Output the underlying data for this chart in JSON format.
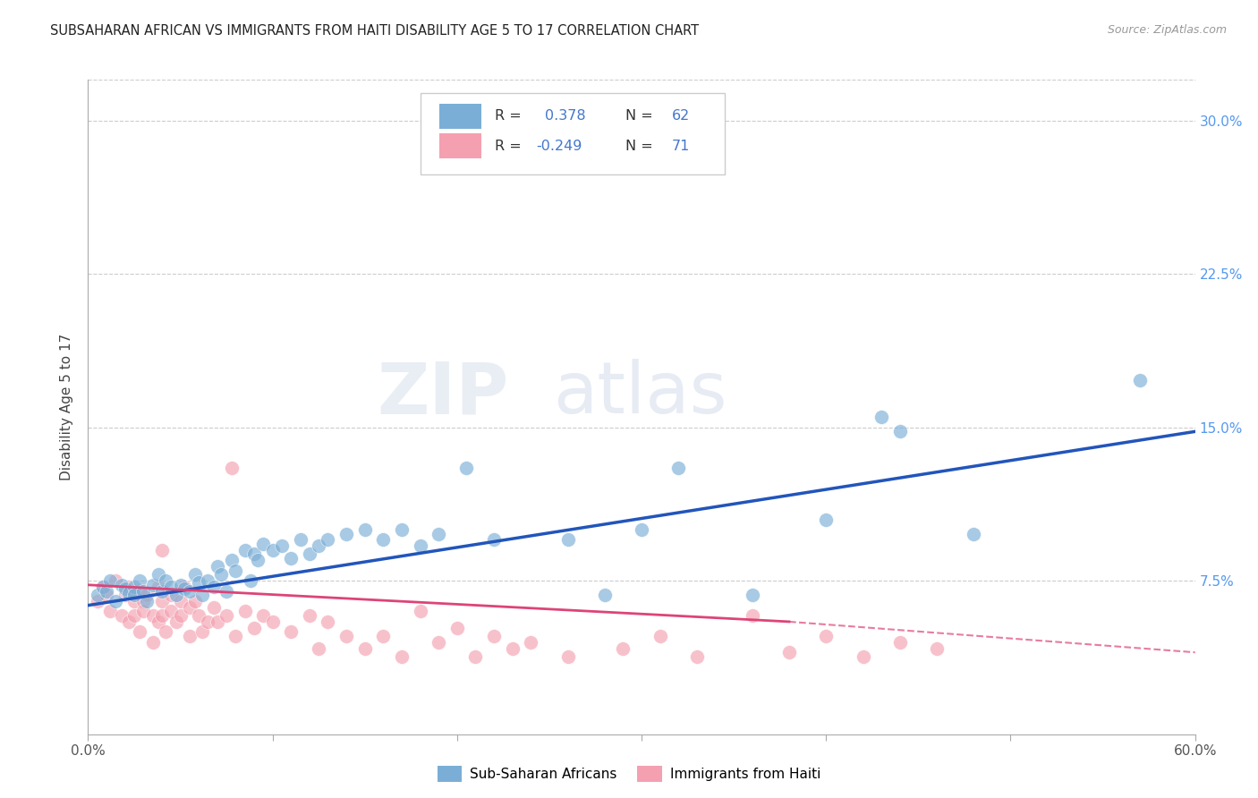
{
  "title": "SUBSAHARAN AFRICAN VS IMMIGRANTS FROM HAITI DISABILITY AGE 5 TO 17 CORRELATION CHART",
  "source": "Source: ZipAtlas.com",
  "ylabel": "Disability Age 5 to 17",
  "xlim": [
    0.0,
    0.6
  ],
  "ylim": [
    0.0,
    0.32
  ],
  "xticks": [
    0.0,
    0.1,
    0.2,
    0.3,
    0.4,
    0.5,
    0.6
  ],
  "xticklabels": [
    "0.0%",
    "",
    "",
    "",
    "",
    "",
    "60.0%"
  ],
  "yticks": [
    0.0,
    0.075,
    0.15,
    0.225,
    0.3
  ],
  "yticklabels": [
    "",
    "7.5%",
    "15.0%",
    "22.5%",
    "30.0%"
  ],
  "grid_color": "#cccccc",
  "background_color": "#ffffff",
  "watermark": "ZIPatlas",
  "blue_color": "#7aaed6",
  "pink_color": "#f4a0b0",
  "blue_line_color": "#2255bb",
  "pink_line_color": "#dd4477",
  "scatter_blue": [
    [
      0.005,
      0.068
    ],
    [
      0.008,
      0.072
    ],
    [
      0.01,
      0.07
    ],
    [
      0.012,
      0.075
    ],
    [
      0.015,
      0.065
    ],
    [
      0.018,
      0.073
    ],
    [
      0.02,
      0.071
    ],
    [
      0.022,
      0.069
    ],
    [
      0.025,
      0.072
    ],
    [
      0.025,
      0.068
    ],
    [
      0.028,
      0.075
    ],
    [
      0.03,
      0.07
    ],
    [
      0.032,
      0.065
    ],
    [
      0.035,
      0.073
    ],
    [
      0.038,
      0.078
    ],
    [
      0.04,
      0.07
    ],
    [
      0.042,
      0.075
    ],
    [
      0.045,
      0.072
    ],
    [
      0.048,
      0.068
    ],
    [
      0.05,
      0.073
    ],
    [
      0.052,
      0.071
    ],
    [
      0.055,
      0.07
    ],
    [
      0.058,
      0.078
    ],
    [
      0.06,
      0.074
    ],
    [
      0.062,
      0.068
    ],
    [
      0.065,
      0.075
    ],
    [
      0.068,
      0.072
    ],
    [
      0.07,
      0.082
    ],
    [
      0.072,
      0.078
    ],
    [
      0.075,
      0.07
    ],
    [
      0.078,
      0.085
    ],
    [
      0.08,
      0.08
    ],
    [
      0.085,
      0.09
    ],
    [
      0.088,
      0.075
    ],
    [
      0.09,
      0.088
    ],
    [
      0.092,
      0.085
    ],
    [
      0.095,
      0.093
    ],
    [
      0.1,
      0.09
    ],
    [
      0.105,
      0.092
    ],
    [
      0.11,
      0.086
    ],
    [
      0.115,
      0.095
    ],
    [
      0.12,
      0.088
    ],
    [
      0.125,
      0.092
    ],
    [
      0.13,
      0.095
    ],
    [
      0.14,
      0.098
    ],
    [
      0.15,
      0.1
    ],
    [
      0.16,
      0.095
    ],
    [
      0.17,
      0.1
    ],
    [
      0.18,
      0.092
    ],
    [
      0.19,
      0.098
    ],
    [
      0.205,
      0.13
    ],
    [
      0.22,
      0.095
    ],
    [
      0.26,
      0.095
    ],
    [
      0.28,
      0.068
    ],
    [
      0.3,
      0.1
    ],
    [
      0.32,
      0.13
    ],
    [
      0.36,
      0.068
    ],
    [
      0.4,
      0.105
    ],
    [
      0.43,
      0.155
    ],
    [
      0.44,
      0.148
    ],
    [
      0.48,
      0.098
    ],
    [
      0.57,
      0.173
    ]
  ],
  "scatter_pink": [
    [
      0.005,
      0.065
    ],
    [
      0.008,
      0.072
    ],
    [
      0.01,
      0.068
    ],
    [
      0.012,
      0.06
    ],
    [
      0.015,
      0.075
    ],
    [
      0.018,
      0.058
    ],
    [
      0.02,
      0.068
    ],
    [
      0.022,
      0.072
    ],
    [
      0.022,
      0.055
    ],
    [
      0.025,
      0.065
    ],
    [
      0.025,
      0.058
    ],
    [
      0.028,
      0.07
    ],
    [
      0.028,
      0.05
    ],
    [
      0.03,
      0.065
    ],
    [
      0.03,
      0.06
    ],
    [
      0.032,
      0.068
    ],
    [
      0.035,
      0.058
    ],
    [
      0.035,
      0.045
    ],
    [
      0.038,
      0.072
    ],
    [
      0.038,
      0.055
    ],
    [
      0.04,
      0.065
    ],
    [
      0.04,
      0.058
    ],
    [
      0.04,
      0.09
    ],
    [
      0.042,
      0.05
    ],
    [
      0.045,
      0.068
    ],
    [
      0.045,
      0.06
    ],
    [
      0.048,
      0.055
    ],
    [
      0.05,
      0.065
    ],
    [
      0.05,
      0.058
    ],
    [
      0.052,
      0.072
    ],
    [
      0.055,
      0.062
    ],
    [
      0.055,
      0.048
    ],
    [
      0.058,
      0.065
    ],
    [
      0.06,
      0.058
    ],
    [
      0.062,
      0.05
    ],
    [
      0.065,
      0.055
    ],
    [
      0.068,
      0.062
    ],
    [
      0.07,
      0.055
    ],
    [
      0.075,
      0.058
    ],
    [
      0.078,
      0.13
    ],
    [
      0.08,
      0.048
    ],
    [
      0.085,
      0.06
    ],
    [
      0.09,
      0.052
    ],
    [
      0.095,
      0.058
    ],
    [
      0.1,
      0.055
    ],
    [
      0.11,
      0.05
    ],
    [
      0.12,
      0.058
    ],
    [
      0.125,
      0.042
    ],
    [
      0.13,
      0.055
    ],
    [
      0.14,
      0.048
    ],
    [
      0.15,
      0.042
    ],
    [
      0.16,
      0.048
    ],
    [
      0.17,
      0.038
    ],
    [
      0.18,
      0.06
    ],
    [
      0.19,
      0.045
    ],
    [
      0.2,
      0.052
    ],
    [
      0.21,
      0.038
    ],
    [
      0.22,
      0.048
    ],
    [
      0.23,
      0.042
    ],
    [
      0.24,
      0.045
    ],
    [
      0.26,
      0.038
    ],
    [
      0.29,
      0.042
    ],
    [
      0.31,
      0.048
    ],
    [
      0.33,
      0.038
    ],
    [
      0.36,
      0.058
    ],
    [
      0.38,
      0.04
    ],
    [
      0.4,
      0.048
    ],
    [
      0.42,
      0.038
    ],
    [
      0.44,
      0.045
    ],
    [
      0.46,
      0.042
    ]
  ],
  "blue_trendline": [
    [
      0.0,
      0.063
    ],
    [
      0.6,
      0.148
    ]
  ],
  "pink_trendline_solid": [
    [
      0.0,
      0.073
    ],
    [
      0.38,
      0.055
    ]
  ],
  "pink_trendline_dashed": [
    [
      0.38,
      0.055
    ],
    [
      0.6,
      0.04
    ]
  ],
  "legend_label1": "Sub-Saharan Africans",
  "legend_label2": "Immigrants from Haiti"
}
